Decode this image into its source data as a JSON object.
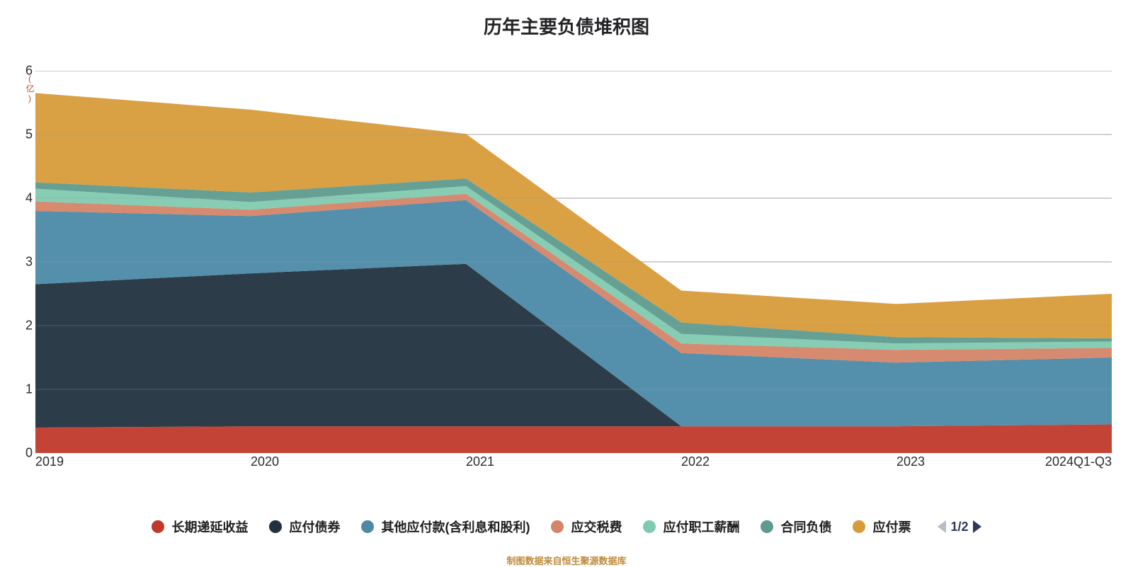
{
  "chart": {
    "type": "area-stacked",
    "title": "历年主要负债堆积图",
    "y_unit_label": "(亿)",
    "source_note": "制图数据来自恒生聚源数据库",
    "background_color": "#ffffff",
    "grid_color": "#a3a3a3",
    "axis_color": "#8a8a8a",
    "title_fontsize": 26,
    "tick_fontsize": 18,
    "legend_fontsize": 18,
    "x": {
      "categories": [
        "2019",
        "2020",
        "2021",
        "2022",
        "2023",
        "2024Q1-Q3"
      ]
    },
    "y": {
      "min": 0,
      "max": 6,
      "tick_step": 1
    },
    "series": [
      {
        "name": "长期递延收益",
        "color": "#c0392b",
        "values": [
          0.4,
          0.42,
          0.42,
          0.42,
          0.42,
          0.45
        ]
      },
      {
        "name": "应付债券",
        "color": "#22313f",
        "values": [
          2.25,
          2.4,
          2.55,
          0.0,
          0.0,
          0.0
        ]
      },
      {
        "name": "其他应付款(含利息和股利)",
        "color": "#4b89a6",
        "values": [
          1.15,
          0.9,
          1.0,
          1.15,
          1.0,
          1.05
        ]
      },
      {
        "name": "应交税费",
        "color": "#d48468",
        "values": [
          0.15,
          0.1,
          0.1,
          0.15,
          0.2,
          0.15
        ]
      },
      {
        "name": "应付职工薪酬",
        "color": "#7fcab0",
        "values": [
          0.2,
          0.12,
          0.12,
          0.15,
          0.1,
          0.1
        ]
      },
      {
        "name": "合同负债",
        "color": "#5e9b8f",
        "values": [
          0.1,
          0.15,
          0.12,
          0.18,
          0.1,
          0.05
        ]
      },
      {
        "name": "应付票据",
        "color": "#d89b3a",
        "values": [
          1.4,
          1.3,
          0.7,
          0.5,
          0.52,
          0.7
        ]
      }
    ],
    "legend_pager": {
      "current": 1,
      "total": 2,
      "text": "1/2"
    },
    "legend_truncated_last_label": "应付票"
  }
}
